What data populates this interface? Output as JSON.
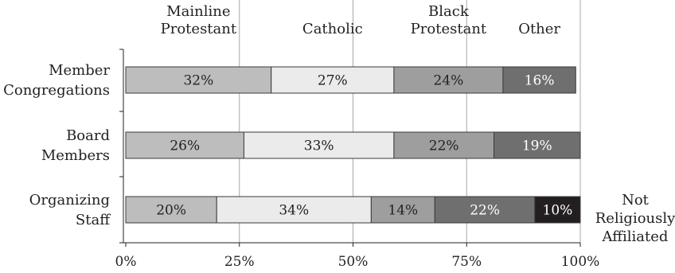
{
  "chart_data": {
    "type": "bar",
    "orientation": "horizontal",
    "stacked": true,
    "title": "",
    "xlabel": "",
    "ylabel": "",
    "xlim": [
      0,
      100
    ],
    "grid": true,
    "legend_position": "top",
    "x_ticks": [
      "0%",
      "25%",
      "50%",
      "75%",
      "100%"
    ],
    "categories": [
      [
        "Member",
        "Congregations"
      ],
      [
        "Board",
        "Members"
      ],
      [
        "Organizing",
        "Staff"
      ]
    ],
    "series": [
      {
        "name": "Mainline Protestant",
        "legend_lines": [
          "Mainline",
          "Protestant"
        ],
        "color": "#bdbdbd",
        "text_color": "#222222",
        "values": [
          32,
          26,
          20
        ],
        "labels": [
          "32%",
          "26%",
          "20%"
        ]
      },
      {
        "name": "Catholic",
        "legend_lines": [
          "Catholic"
        ],
        "color": "#ebebeb",
        "text_color": "#222222",
        "values": [
          27,
          33,
          34
        ],
        "labels": [
          "27%",
          "33%",
          "34%"
        ]
      },
      {
        "name": "Black Protestant",
        "legend_lines": [
          "Black",
          "Protestant"
        ],
        "color": "#9e9e9e",
        "text_color": "#222222",
        "values": [
          24,
          22,
          14
        ],
        "labels": [
          "24%",
          "22%",
          "14%"
        ]
      },
      {
        "name": "Other",
        "legend_lines": [
          "Other"
        ],
        "color": "#6f6f6f",
        "text_color": "#ffffff",
        "values": [
          16,
          19,
          22
        ],
        "labels": [
          "16%",
          "19%",
          "22%"
        ]
      },
      {
        "name": "Not Religiously Affiliated",
        "legend_lines": [],
        "color": "#231f20",
        "text_color": "#ffffff",
        "values": [
          0,
          0,
          10
        ],
        "labels": [
          "",
          "",
          "10%"
        ]
      }
    ],
    "annotation": {
      "lines": [
        "Not",
        "Religiously",
        "Affiliated"
      ]
    }
  }
}
